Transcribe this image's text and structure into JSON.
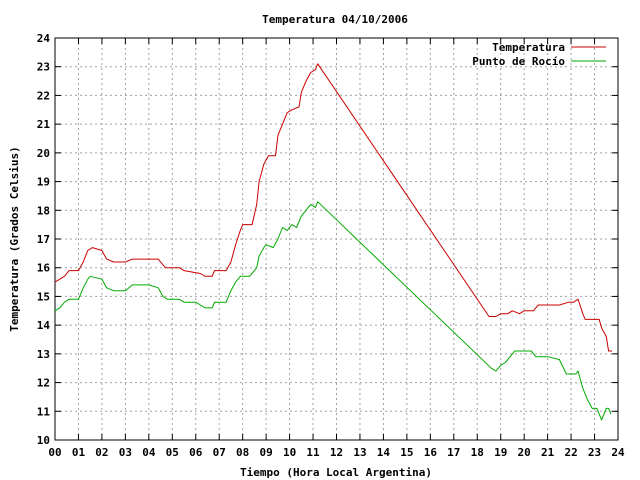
{
  "chart_data": {
    "type": "line",
    "title": "Temperatura 04/10/2006",
    "xlabel": "Tiempo (Hora Local Argentina)",
    "ylabel": "Temperatura (Grados Celsius)",
    "xlim": [
      0,
      24
    ],
    "ylim": [
      10,
      24
    ],
    "x_ticks": [
      "00",
      "01",
      "02",
      "03",
      "04",
      "05",
      "06",
      "07",
      "08",
      "09",
      "10",
      "11",
      "12",
      "13",
      "14",
      "15",
      "16",
      "17",
      "18",
      "19",
      "20",
      "21",
      "22",
      "23",
      "24"
    ],
    "y_ticks": [
      "10",
      "11",
      "12",
      "13",
      "14",
      "15",
      "16",
      "17",
      "18",
      "19",
      "20",
      "21",
      "22",
      "23",
      "24"
    ],
    "grid": true,
    "legend_position": "top-right",
    "series": [
      {
        "name": "Temperatura",
        "color": "#cc0000",
        "points": [
          [
            0.0,
            15.5
          ],
          [
            0.2,
            15.6
          ],
          [
            0.4,
            15.7
          ],
          [
            0.6,
            15.9
          ],
          [
            1.0,
            15.9
          ],
          [
            1.2,
            16.2
          ],
          [
            1.4,
            16.6
          ],
          [
            1.6,
            16.7
          ],
          [
            2.0,
            16.6
          ],
          [
            2.2,
            16.3
          ],
          [
            2.5,
            16.2
          ],
          [
            3.0,
            16.2
          ],
          [
            3.3,
            16.3
          ],
          [
            4.0,
            16.3
          ],
          [
            4.4,
            16.3
          ],
          [
            4.7,
            16.0
          ],
          [
            5.3,
            16.0
          ],
          [
            5.5,
            15.9
          ],
          [
            6.2,
            15.8
          ],
          [
            6.4,
            15.7
          ],
          [
            6.7,
            15.7
          ],
          [
            6.8,
            15.9
          ],
          [
            7.3,
            15.9
          ],
          [
            7.5,
            16.2
          ],
          [
            7.7,
            16.8
          ],
          [
            7.9,
            17.3
          ],
          [
            8.0,
            17.5
          ],
          [
            8.4,
            17.5
          ],
          [
            8.6,
            18.2
          ],
          [
            8.7,
            19.0
          ],
          [
            8.9,
            19.6
          ],
          [
            9.1,
            19.9
          ],
          [
            9.4,
            19.9
          ],
          [
            9.5,
            20.6
          ],
          [
            9.7,
            21.0
          ],
          [
            9.9,
            21.4
          ],
          [
            10.1,
            21.5
          ],
          [
            10.4,
            21.6
          ],
          [
            10.5,
            22.1
          ],
          [
            10.7,
            22.5
          ],
          [
            10.9,
            22.8
          ],
          [
            11.1,
            22.9
          ],
          [
            11.2,
            23.1
          ],
          [
            18.5,
            14.3
          ],
          [
            18.8,
            14.3
          ],
          [
            19.0,
            14.4
          ],
          [
            19.3,
            14.4
          ],
          [
            19.5,
            14.5
          ],
          [
            19.8,
            14.4
          ],
          [
            20.0,
            14.5
          ],
          [
            20.4,
            14.5
          ],
          [
            20.6,
            14.7
          ],
          [
            21.0,
            14.7
          ],
          [
            21.5,
            14.7
          ],
          [
            21.9,
            14.8
          ],
          [
            22.1,
            14.8
          ],
          [
            22.3,
            14.9
          ],
          [
            22.5,
            14.4
          ],
          [
            22.6,
            14.2
          ],
          [
            23.0,
            14.2
          ],
          [
            23.2,
            14.2
          ],
          [
            23.3,
            13.9
          ],
          [
            23.5,
            13.6
          ],
          [
            23.6,
            13.1
          ],
          [
            23.75,
            13.1
          ]
        ]
      },
      {
        "name": "Punto de Rocío",
        "color": "#00aa00",
        "points": [
          [
            0.0,
            14.5
          ],
          [
            0.2,
            14.6
          ],
          [
            0.4,
            14.8
          ],
          [
            0.6,
            14.9
          ],
          [
            1.0,
            14.9
          ],
          [
            1.2,
            15.3
          ],
          [
            1.4,
            15.6
          ],
          [
            1.5,
            15.7
          ],
          [
            2.0,
            15.6
          ],
          [
            2.2,
            15.3
          ],
          [
            2.5,
            15.2
          ],
          [
            3.0,
            15.2
          ],
          [
            3.3,
            15.4
          ],
          [
            4.0,
            15.4
          ],
          [
            4.4,
            15.3
          ],
          [
            4.6,
            15.0
          ],
          [
            4.8,
            14.9
          ],
          [
            5.3,
            14.9
          ],
          [
            5.5,
            14.8
          ],
          [
            6.0,
            14.8
          ],
          [
            6.2,
            14.7
          ],
          [
            6.4,
            14.6
          ],
          [
            6.7,
            14.6
          ],
          [
            6.8,
            14.8
          ],
          [
            7.3,
            14.8
          ],
          [
            7.5,
            15.2
          ],
          [
            7.7,
            15.5
          ],
          [
            7.9,
            15.7
          ],
          [
            8.3,
            15.7
          ],
          [
            8.6,
            16.0
          ],
          [
            8.7,
            16.4
          ],
          [
            8.9,
            16.7
          ],
          [
            9.0,
            16.8
          ],
          [
            9.3,
            16.7
          ],
          [
            9.5,
            17.0
          ],
          [
            9.7,
            17.4
          ],
          [
            9.9,
            17.3
          ],
          [
            10.1,
            17.5
          ],
          [
            10.3,
            17.4
          ],
          [
            10.5,
            17.8
          ],
          [
            10.7,
            18.0
          ],
          [
            10.9,
            18.2
          ],
          [
            11.1,
            18.1
          ],
          [
            11.2,
            18.3
          ],
          [
            18.6,
            12.5
          ],
          [
            18.8,
            12.4
          ],
          [
            19.0,
            12.6
          ],
          [
            19.2,
            12.7
          ],
          [
            19.4,
            12.9
          ],
          [
            19.6,
            13.1
          ],
          [
            20.0,
            13.1
          ],
          [
            20.3,
            13.1
          ],
          [
            20.5,
            12.9
          ],
          [
            21.0,
            12.9
          ],
          [
            21.5,
            12.8
          ],
          [
            21.8,
            12.3
          ],
          [
            22.2,
            12.3
          ],
          [
            22.3,
            12.4
          ],
          [
            22.5,
            11.8
          ],
          [
            22.6,
            11.6
          ],
          [
            22.7,
            11.4
          ],
          [
            22.9,
            11.1
          ],
          [
            23.1,
            11.1
          ],
          [
            23.2,
            10.9
          ],
          [
            23.3,
            10.7
          ],
          [
            23.4,
            10.9
          ],
          [
            23.5,
            11.1
          ],
          [
            23.6,
            11.1
          ],
          [
            23.7,
            10.9
          ]
        ]
      }
    ]
  }
}
